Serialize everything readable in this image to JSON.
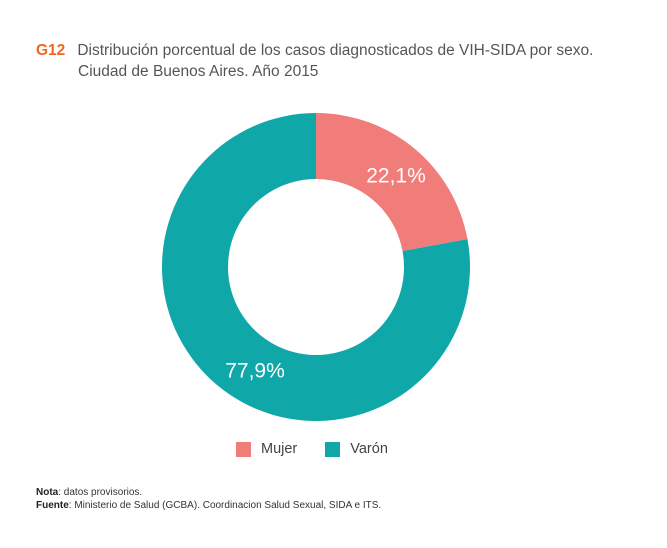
{
  "header": {
    "chart_id": "G12",
    "title_line1": "Distribución porcentual de los casos diagnosticados de VIH-SIDA por sexo.",
    "title_line2": "Ciudad de Buenos Aires. Año 2015"
  },
  "chart_data": {
    "type": "pie",
    "variant": "donut",
    "title": "Distribución porcentual de los casos diagnosticados de VIH-SIDA por sexo. Ciudad de Buenos Aires. Año 2015",
    "categories": [
      "Mujer",
      "Varón"
    ],
    "values": [
      22.1,
      77.9
    ],
    "labels": [
      "22,1%",
      "77,9%"
    ],
    "colors": [
      "#f07d7a",
      "#10a7a8"
    ],
    "legend_position": "bottom"
  },
  "legend": {
    "items": [
      {
        "label": "Mujer",
        "color": "#f07d7a"
      },
      {
        "label": "Varón",
        "color": "#10a7a8"
      }
    ]
  },
  "notes": {
    "nota_label": "Nota",
    "nota_text": ": datos provisorios.",
    "fuente_label": "Fuente",
    "fuente_text": ": Ministerio de Salud (GCBA). Coordinacion Salud Sexual, SIDA e ITS."
  }
}
